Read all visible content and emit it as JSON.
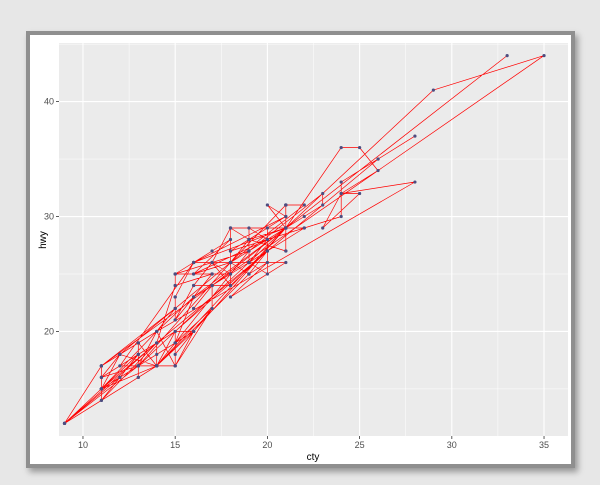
{
  "chart_data": {
    "type": "line",
    "xlabel": "cty",
    "ylabel": "hwy",
    "xlim": [
      8.7,
      36.3
    ],
    "ylim": [
      10.9,
      45.1
    ],
    "x_ticks": [
      10,
      15,
      20,
      25,
      30,
      35
    ],
    "y_ticks": [
      20,
      30,
      40
    ],
    "grid": true,
    "colors": {
      "panel": "#ebebeb",
      "grid": "#ffffff",
      "line": "#ff0000",
      "point": "#4d4d80"
    },
    "series": [
      {
        "x": [
          18,
          21,
          20,
          21,
          16,
          18,
          18,
          18,
          16,
          20,
          19,
          15,
          17,
          17,
          15,
          15,
          17,
          16,
          14,
          11,
          14,
          13,
          12,
          16,
          15,
          16,
          15,
          15,
          14,
          11,
          11,
          14,
          19,
          22,
          18,
          18,
          17,
          18,
          17,
          16,
          16,
          17,
          17,
          11,
          15,
          15,
          16,
          16,
          15,
          14,
          13,
          14,
          14,
          14,
          9,
          11,
          11,
          13,
          13,
          9,
          13,
          11,
          13,
          11,
          12,
          9,
          13,
          13,
          12,
          9,
          11,
          11,
          13,
          11,
          11,
          11,
          12,
          14,
          15,
          14,
          13,
          13,
          13,
          14,
          14,
          13,
          13,
          13,
          11,
          13,
          18,
          18,
          17,
          16,
          15,
          15,
          15,
          15,
          14,
          28,
          24,
          25,
          23,
          24,
          26,
          25,
          24,
          21,
          18,
          18,
          21,
          21,
          18,
          18,
          19,
          19,
          19,
          20,
          20,
          17,
          16,
          17,
          17,
          15,
          15,
          14,
          9,
          14,
          13,
          11,
          11,
          12,
          12,
          11,
          11,
          11,
          12,
          14,
          13,
          13,
          13,
          21,
          19,
          23,
          23,
          19,
          19,
          18,
          19,
          19,
          14,
          15,
          14,
          12,
          18,
          16,
          17,
          18,
          16,
          18,
          18,
          20,
          19,
          20,
          18,
          21,
          19,
          19,
          19,
          20,
          20,
          19,
          20,
          15,
          16,
          15,
          15,
          16,
          14,
          21,
          21,
          21,
          21,
          18,
          18,
          19,
          21,
          21,
          21,
          22,
          18,
          18,
          18,
          24,
          24,
          26,
          28,
          26,
          11,
          13,
          15,
          16,
          17,
          15,
          15,
          15,
          16,
          21,
          19,
          21,
          22,
          17,
          33,
          21,
          19,
          22,
          21,
          21,
          21,
          16,
          17,
          35,
          29,
          21,
          19,
          20,
          20,
          21,
          18,
          19,
          21,
          16,
          18,
          17
        ],
        "y": [
          29,
          29,
          31,
          30,
          26,
          26,
          27,
          26,
          25,
          28,
          27,
          25,
          25,
          25,
          25,
          24,
          25,
          23,
          20,
          15,
          20,
          17,
          17,
          26,
          23,
          26,
          25,
          24,
          19,
          14,
          15,
          17,
          27,
          30,
          26,
          29,
          26,
          24,
          24,
          22,
          22,
          24,
          24,
          17,
          22,
          21,
          23,
          23,
          19,
          18,
          17,
          17,
          19,
          19,
          12,
          17,
          15,
          17,
          17,
          12,
          17,
          16,
          18,
          15,
          16,
          12,
          17,
          17,
          16,
          12,
          15,
          16,
          17,
          15,
          17,
          17,
          18,
          17,
          19,
          17,
          19,
          19,
          17,
          17,
          17,
          16,
          16,
          17,
          15,
          17,
          26,
          25,
          26,
          24,
          21,
          22,
          23,
          22,
          20,
          33,
          32,
          32,
          29,
          32,
          34,
          36,
          36,
          29,
          26,
          27,
          30,
          31,
          26,
          26,
          28,
          26,
          29,
          28,
          27,
          24,
          24,
          24,
          22,
          19,
          20,
          17,
          12,
          19,
          18,
          14,
          15,
          18,
          18,
          15,
          17,
          16,
          18,
          17,
          19,
          19,
          17,
          29,
          27,
          31,
          32,
          27,
          26,
          26,
          25,
          25,
          17,
          17,
          20,
          18,
          26,
          26,
          27,
          28,
          25,
          25,
          24,
          27,
          25,
          26,
          23,
          26,
          26,
          26,
          26,
          25,
          27,
          25,
          27,
          20,
          20,
          19,
          17,
          20,
          17,
          29,
          27,
          31,
          31,
          26,
          26,
          28,
          27,
          29,
          31,
          31,
          26,
          26,
          27,
          30,
          33,
          35,
          37,
          35,
          15,
          18,
          20,
          20,
          22,
          17,
          19,
          18,
          20,
          29,
          26,
          29,
          29,
          24,
          44,
          29,
          26,
          29,
          29,
          29,
          29,
          23,
          24,
          44,
          41,
          29,
          26,
          28,
          29,
          29,
          29,
          28,
          29,
          26,
          26,
          26
        ]
      }
    ]
  }
}
